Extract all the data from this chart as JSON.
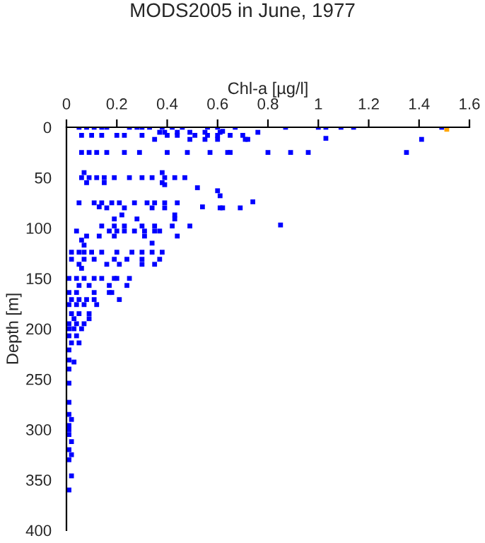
{
  "chart_data": {
    "type": "scatter",
    "title": "MODS2005 in June, 1977",
    "xlabel": "Chl-a [µg/l]",
    "ylabel": "Depth [m]",
    "xlim": [
      0,
      1.6
    ],
    "ylim": [
      400,
      0
    ],
    "xticks": [
      0,
      0.2,
      0.4,
      0.6,
      0.8,
      1,
      1.2,
      1.4,
      1.6
    ],
    "yticks": [
      0,
      50,
      100,
      150,
      200,
      250,
      300,
      350,
      400
    ],
    "marker": "square",
    "grid": false,
    "legend": false,
    "series": [
      {
        "color": "#0000ff",
        "x": [
          0.05,
          0.08,
          0.11,
          0.14,
          0.16,
          0.25,
          0.28,
          0.3,
          0.33,
          0.38,
          0.42,
          0.46,
          0.56,
          0.6,
          0.67,
          0.87,
          1.0,
          1.03,
          1.09,
          1.14,
          1.49,
          0.37,
          0.39,
          0.44,
          0.49,
          0.55,
          0.61,
          0.62,
          0.76,
          0.06,
          0.1,
          0.14,
          0.2,
          0.23,
          0.3,
          0.4,
          0.44,
          0.51,
          0.56,
          0.6,
          0.65,
          0.7,
          0.35,
          0.49,
          0.55,
          0.6,
          0.71,
          0.72,
          1.03,
          1.41,
          0.06,
          0.09,
          0.12,
          0.16,
          0.23,
          0.29,
          0.4,
          0.48,
          0.57,
          0.64,
          0.65,
          0.8,
          0.89,
          0.96,
          1.35,
          0.07,
          0.38,
          0.06,
          0.09,
          0.12,
          0.15,
          0.19,
          0.25,
          0.3,
          0.34,
          0.39,
          0.43,
          0.47,
          0.08,
          0.15,
          0.38,
          0.39,
          0.52,
          0.6,
          0.61,
          0.05,
          0.11,
          0.14,
          0.18,
          0.21,
          0.27,
          0.32,
          0.35,
          0.39,
          0.44,
          0.54,
          0.62,
          0.69,
          0.74,
          0.13,
          0.16,
          0.23,
          0.34,
          0.39,
          0.61,
          0.22,
          0.43,
          0.85,
          0.19,
          0.28,
          0.43,
          0.14,
          0.19,
          0.23,
          0.3,
          0.35,
          0.42,
          0.49,
          0.04,
          0.17,
          0.2,
          0.23,
          0.27,
          0.31,
          0.35,
          0.37,
          0.08,
          0.13,
          0.19,
          0.31,
          0.44,
          0.34,
          0.06,
          0.07,
          0.02,
          0.05,
          0.07,
          0.1,
          0.14,
          0.2,
          0.26,
          0.3,
          0.34,
          0.38,
          0.02,
          0.07,
          0.11,
          0.19,
          0.24,
          0.3,
          0.37,
          0.05,
          0.16,
          0.21,
          0.3,
          0.35,
          0.06,
          0.01,
          0.04,
          0.07,
          0.11,
          0.14,
          0.19,
          0.2,
          0.25,
          0.05,
          0.09,
          0.17,
          0.24,
          0.01,
          0.04,
          0.11,
          0.17,
          0.18,
          0.02,
          0.05,
          0.08,
          0.11,
          0.21,
          0.01,
          0.04,
          0.07,
          0.12,
          0.02,
          0.05,
          0.09,
          0.03,
          0.09,
          0.01,
          0.04,
          0.07,
          0.01,
          0.03,
          0.06,
          0.01,
          0.04,
          0.02,
          0.05,
          0.01,
          0.03,
          0.01,
          0.01,
          0.01,
          0.01,
          0.01,
          0.02,
          0.01,
          0.01,
          0.01,
          0.02,
          0.01,
          0.02,
          0.01,
          0.02,
          0.01
        ],
        "values": [
          0,
          0,
          0,
          0,
          0,
          0,
          0,
          0,
          0,
          0,
          0,
          0,
          0,
          0,
          0,
          0,
          0,
          0,
          0,
          0,
          0,
          5,
          5,
          5,
          5,
          5,
          5,
          4,
          5,
          8,
          8,
          8,
          8,
          8,
          8,
          8,
          8,
          8,
          8,
          8,
          8,
          8,
          12,
          12,
          12,
          12,
          12,
          12,
          11,
          12,
          25,
          25,
          25,
          25,
          25,
          25,
          25,
          25,
          25,
          25,
          25,
          25,
          25,
          25,
          25,
          45,
          45,
          50,
          50,
          50,
          50,
          50,
          50,
          50,
          50,
          50,
          50,
          50,
          55,
          55,
          55,
          57,
          60,
          63,
          68,
          75,
          75,
          75,
          75,
          75,
          75,
          75,
          75,
          75,
          75,
          79,
          80,
          80,
          74,
          79,
          80,
          80,
          80,
          80,
          80,
          87,
          87,
          97,
          91,
          91,
          91,
          98,
          98,
          98,
          98,
          98,
          98,
          98,
          103,
          103,
          103,
          103,
          103,
          103,
          103,
          103,
          108,
          108,
          108,
          108,
          108,
          115,
          112,
          117,
          124,
          124,
          124,
          124,
          124,
          124,
          124,
          124,
          124,
          124,
          131,
          131,
          131,
          131,
          131,
          131,
          131,
          136,
          136,
          136,
          136,
          136,
          140,
          150,
          150,
          150,
          150,
          150,
          150,
          150,
          150,
          157,
          157,
          157,
          157,
          164,
          164,
          164,
          164,
          164,
          171,
          171,
          171,
          171,
          171,
          176,
          176,
          176,
          176,
          185,
          185,
          185,
          190,
          190,
          195,
          195,
          195,
          200,
          200,
          200,
          207,
          207,
          214,
          214,
          221,
          233,
          231,
          240,
          254,
          273,
          285,
          290,
          296,
          300,
          305,
          312,
          320,
          325,
          330,
          346,
          360
        ]
      },
      {
        "color": "#ffa500",
        "x": [
          1.51
        ],
        "values": [
          2
        ]
      }
    ]
  }
}
